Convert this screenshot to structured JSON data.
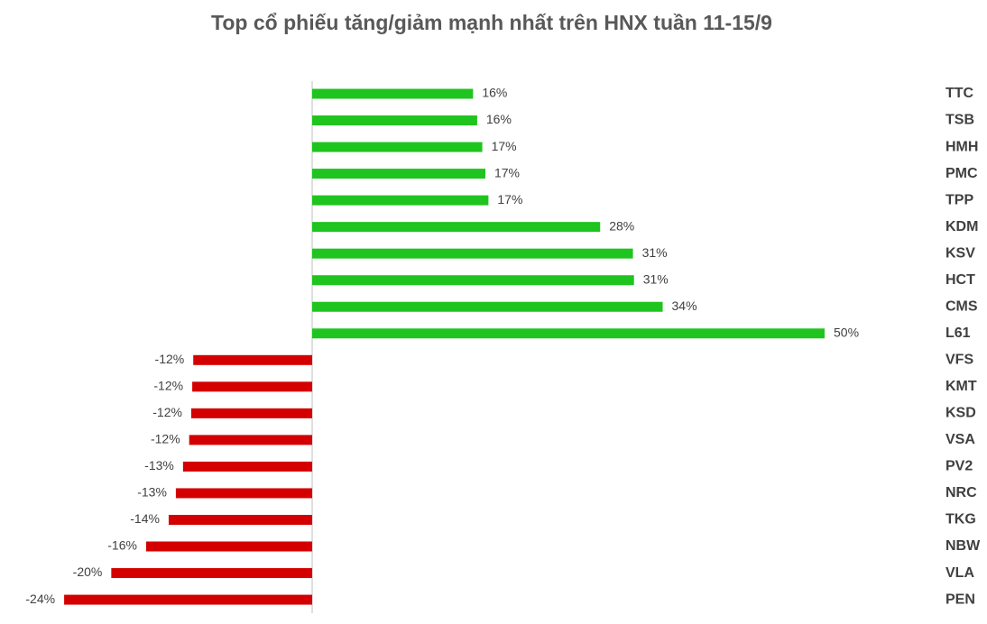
{
  "chart_data": {
    "type": "hbar",
    "title": "Top cổ phiếu tăng/giảm mạnh nhất trên HNX tuần 11-15/9",
    "categories": [
      "TTC",
      "TSB",
      "HMH",
      "PMC",
      "TPP",
      "KDM",
      "KSV",
      "HCT",
      "CMS",
      "L61",
      "VFS",
      "KMT",
      "KSD",
      "VSA",
      "PV2",
      "NRC",
      "TKG",
      "NBW",
      "VLA",
      "PEN"
    ],
    "values": [
      15.7,
      16.1,
      16.6,
      16.9,
      17.2,
      28.1,
      31.3,
      31.4,
      34.2,
      50.0,
      -11.6,
      -11.7,
      -11.8,
      -12.0,
      -12.6,
      -13.3,
      -14.0,
      -16.2,
      -19.6,
      -24.2
    ],
    "value_labels": [
      "16%",
      "16%",
      "17%",
      "17%",
      "17%",
      "28%",
      "31%",
      "31%",
      "34%",
      "50%",
      "-12%",
      "-12%",
      "-12%",
      "-12%",
      "-13%",
      "-13%",
      "-14%",
      "-16%",
      "-20%",
      "-24%"
    ],
    "positive_color": "#1fc41f",
    "negative_color": "#d40000",
    "xlim": [
      -25,
      50
    ]
  }
}
